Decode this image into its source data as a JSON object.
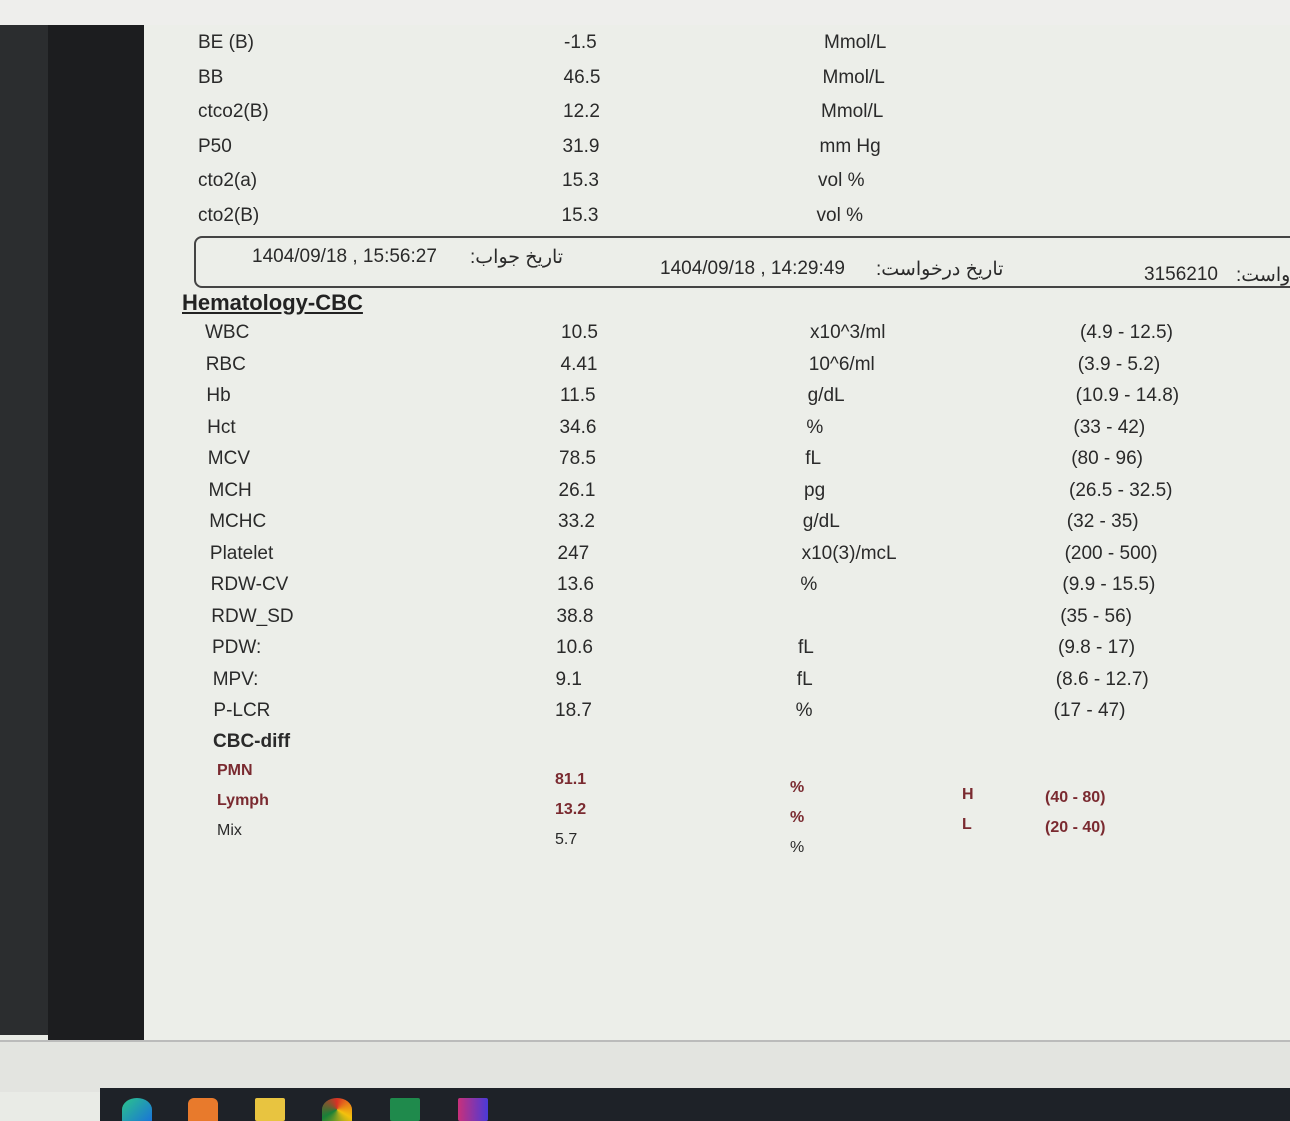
{
  "blood_gas": [
    {
      "name": "BE (B)",
      "value": "-1.5",
      "unit": "Mmol/L"
    },
    {
      "name": "BB",
      "value": "46.5",
      "unit": "Mmol/L"
    },
    {
      "name": "ctco2(B)",
      "value": "12.2",
      "unit": "Mmol/L"
    },
    {
      "name": "P50",
      "value": "31.9",
      "unit": "mm Hg"
    },
    {
      "name": "cto2(a)",
      "value": "15.3",
      "unit": "vol %"
    },
    {
      "name": "cto2(B)",
      "value": "15.3",
      "unit": "vol %"
    }
  ],
  "info_bar": {
    "answer_date_label": "تاریخ جواب:",
    "answer_date": "1404/09/18 , 15:56:27",
    "request_date_label": "تاریخ درخواست:",
    "request_date": "1404/09/18 , 14:29:49",
    "request_no_label": "واست:",
    "request_no": "3156210"
  },
  "section_title": "Hematology-CBC",
  "cbc": [
    {
      "name": "WBC",
      "value": "10.5",
      "unit": "x10^3/ml",
      "range": "(4.9 - 12.5)"
    },
    {
      "name": "RBC",
      "value": "4.41",
      "unit": "10^6/ml",
      "range": "(3.9 - 5.2)"
    },
    {
      "name": "Hb",
      "value": "11.5",
      "unit": "g/dL",
      "range": "(10.9 - 14.8)"
    },
    {
      "name": "Hct",
      "value": "34.6",
      "unit": "%",
      "range": "(33 - 42)"
    },
    {
      "name": "MCV",
      "value": "78.5",
      "unit": "fL",
      "range": "(80 - 96)"
    },
    {
      "name": "MCH",
      "value": "26.1",
      "unit": "pg",
      "range": "(26.5 - 32.5)"
    },
    {
      "name": "MCHC",
      "value": "33.2",
      "unit": "g/dL",
      "range": "(32 - 35)"
    },
    {
      "name": "Platelet",
      "value": "247",
      "unit": "x10(3)/mcL",
      "range": "(200 - 500)"
    },
    {
      "name": "RDW-CV",
      "value": "13.6",
      "unit": "%",
      "range": "(9.9 - 15.5)"
    },
    {
      "name": "RDW_SD",
      "value": "38.8",
      "unit": "",
      "range": "(35 - 56)"
    },
    {
      "name": "PDW:",
      "value": "10.6",
      "unit": "fL",
      "range": "(9.8 - 17)"
    },
    {
      "name": "MPV:",
      "value": "9.1",
      "unit": "fL",
      "range": "(8.6 - 12.7)"
    },
    {
      "name": "P-LCR",
      "value": "18.7",
      "unit": "%",
      "range": "(17 - 47)"
    }
  ],
  "diff_title": "CBC-diff",
  "diff": [
    {
      "name": "PMN",
      "value": "81.1",
      "unit": "%",
      "flag": "H",
      "range": "(40 - 80)"
    },
    {
      "name": "Lymph",
      "value": "13.2",
      "unit": "%",
      "flag": "L",
      "range": "(20 - 40)"
    },
    {
      "name": "Mix",
      "value": "5.7",
      "unit": "%",
      "flag": "",
      "range": ""
    }
  ],
  "taskbar_icons": [
    "edge-icon",
    "app-icon",
    "file-explorer-icon",
    "chrome-icon",
    "excel-icon",
    "media-icon"
  ],
  "colors": {
    "flag_text": "#7a2a30",
    "taskbar": "#1e2228"
  }
}
